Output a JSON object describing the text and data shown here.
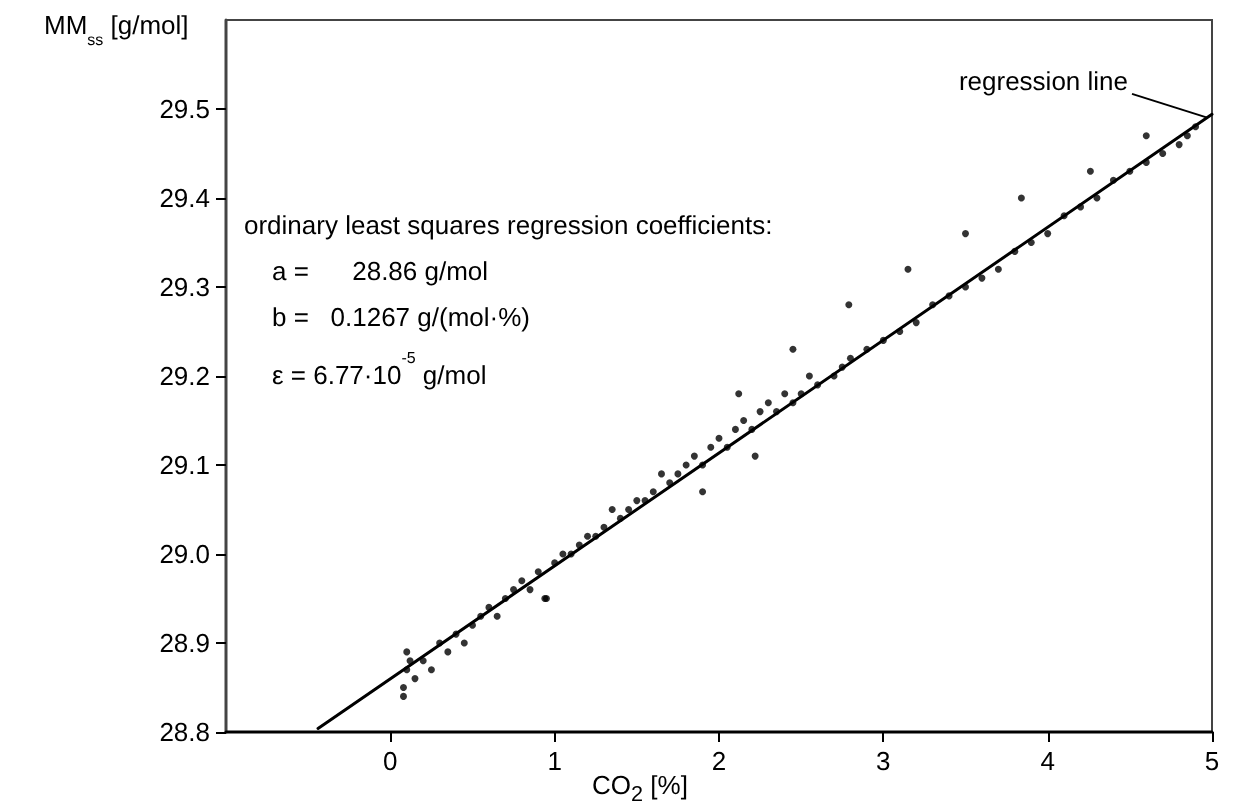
{
  "chart_data": {
    "type": "scatter",
    "xlabel": "CO$_{2}$ [%]",
    "ylabel": "MM$_{ss}$ [g/mol]",
    "xlim": [
      -1,
      5
    ],
    "xticks": [
      0,
      1,
      2,
      3,
      4,
      5
    ],
    "ylim": [
      28.8,
      29.6
    ],
    "yticks": [
      28.8,
      28.9,
      {
        "value": 29,
        "label": "29.0"
      },
      29.1,
      29.2,
      29.3,
      29.4,
      29.5
    ],
    "grid": false,
    "marker": "circle",
    "annotations": [
      "ordinary least squares regression coefficients:",
      "a =      28.86 g/mol",
      "b =   0.1267 g/(mol·%)",
      "ε = 6.77·10$^{-5}$ g/mol",
      {
        "text": "regression line",
        "x": 5,
        "y": 29.49
      }
    ],
    "series": [
      {
        "color": "#000000",
        "x": [
          0.08,
          0.08,
          0.1,
          0.1,
          0.12,
          0.15,
          0.2,
          0.25,
          0.3,
          0.35,
          0.4,
          0.45,
          0.5,
          0.55,
          0.6,
          0.65,
          0.7,
          0.75,
          0.8,
          0.85,
          0.9,
          0.95,
          1.0,
          1.05,
          1.1,
          1.15,
          1.2,
          1.25,
          1.3,
          1.35,
          1.4,
          1.45,
          1.5,
          1.55,
          1.6,
          1.65,
          1.7,
          1.75,
          1.8,
          1.85,
          1.9,
          1.95,
          2.0,
          2.05,
          2.1,
          2.15,
          2.2,
          2.25,
          2.3,
          2.35,
          2.4,
          2.45,
          2.5,
          2.55,
          2.6,
          2.7,
          2.75,
          2.8,
          2.9,
          3.0,
          3.1,
          3.2,
          3.3,
          3.4,
          3.5,
          3.6,
          3.7,
          3.8,
          3.9,
          4.0,
          4.1,
          4.2,
          4.3,
          4.4,
          4.5,
          4.6,
          4.7,
          4.8,
          4.85,
          4.9,
          2.45,
          2.79,
          3.15,
          3.5,
          3.84,
          4.26,
          4.6,
          2.12,
          0.94,
          1.9,
          2.22
        ],
        "values": [
          28.84,
          28.85,
          28.89,
          28.87,
          28.88,
          28.86,
          28.88,
          28.87,
          28.9,
          28.89,
          28.91,
          28.9,
          28.92,
          28.93,
          28.94,
          28.93,
          28.95,
          28.96,
          28.97,
          28.96,
          28.98,
          28.95,
          28.99,
          29.0,
          29.0,
          29.01,
          29.02,
          29.02,
          29.03,
          29.05,
          29.04,
          29.05,
          29.06,
          29.06,
          29.07,
          29.09,
          29.08,
          29.09,
          29.1,
          29.11,
          29.1,
          29.12,
          29.13,
          29.12,
          29.14,
          29.15,
          29.14,
          29.16,
          29.17,
          29.16,
          29.18,
          29.17,
          29.18,
          29.2,
          29.19,
          29.2,
          29.21,
          29.22,
          29.23,
          29.24,
          29.25,
          29.26,
          29.28,
          29.29,
          29.3,
          29.31,
          29.32,
          29.34,
          29.35,
          29.36,
          29.38,
          29.39,
          29.4,
          29.42,
          29.43,
          29.44,
          29.45,
          29.46,
          29.47,
          29.48,
          29.23,
          29.28,
          29.32,
          29.36,
          29.4,
          29.43,
          29.47,
          29.18,
          28.95,
          29.07,
          29.11
        ]
      },
      {
        "type": "line",
        "color": "#000000",
        "line_style": "solid",
        "marker": "none",
        "x": [
          -0.44,
          5
        ],
        "values": [
          28.804,
          29.494
        ]
      }
    ]
  }
}
